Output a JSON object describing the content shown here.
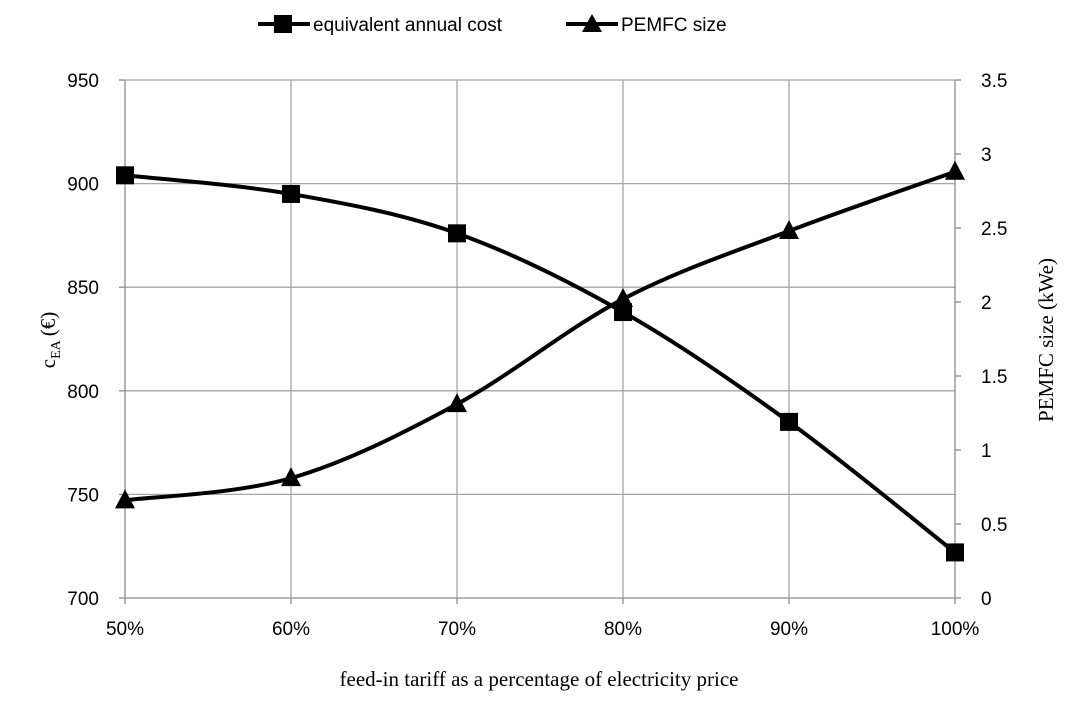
{
  "chart_data": {
    "type": "line",
    "categories": [
      "50%",
      "60%",
      "70%",
      "80%",
      "90%",
      "100%"
    ],
    "xlabel": "feed-in tariff as a percentage of electricity price",
    "ylabel": {
      "symbol": "c",
      "subscript": "EA",
      "unit": "(€)"
    },
    "y2label": "PEMFC size (kWe)",
    "ylim": [
      700,
      950
    ],
    "y_ticks": [
      "700",
      "750",
      "800",
      "850",
      "900",
      "950"
    ],
    "y2lim": [
      0,
      3.5
    ],
    "y2_ticks": [
      "0",
      "0.5",
      "1",
      "1.5",
      "2",
      "2.5",
      "3",
      "3.5"
    ],
    "grid": true,
    "legend_position": "top",
    "series": [
      {
        "name": "equivalent annual cost",
        "axis": "left",
        "marker": "square",
        "color": "#000000",
        "values": [
          904,
          895,
          876,
          838,
          785,
          722
        ]
      },
      {
        "name": "PEMFC size",
        "axis": "right",
        "marker": "triangle",
        "color": "#000000",
        "values": [
          0.66,
          0.81,
          1.31,
          2.02,
          2.48,
          2.88
        ]
      }
    ]
  }
}
